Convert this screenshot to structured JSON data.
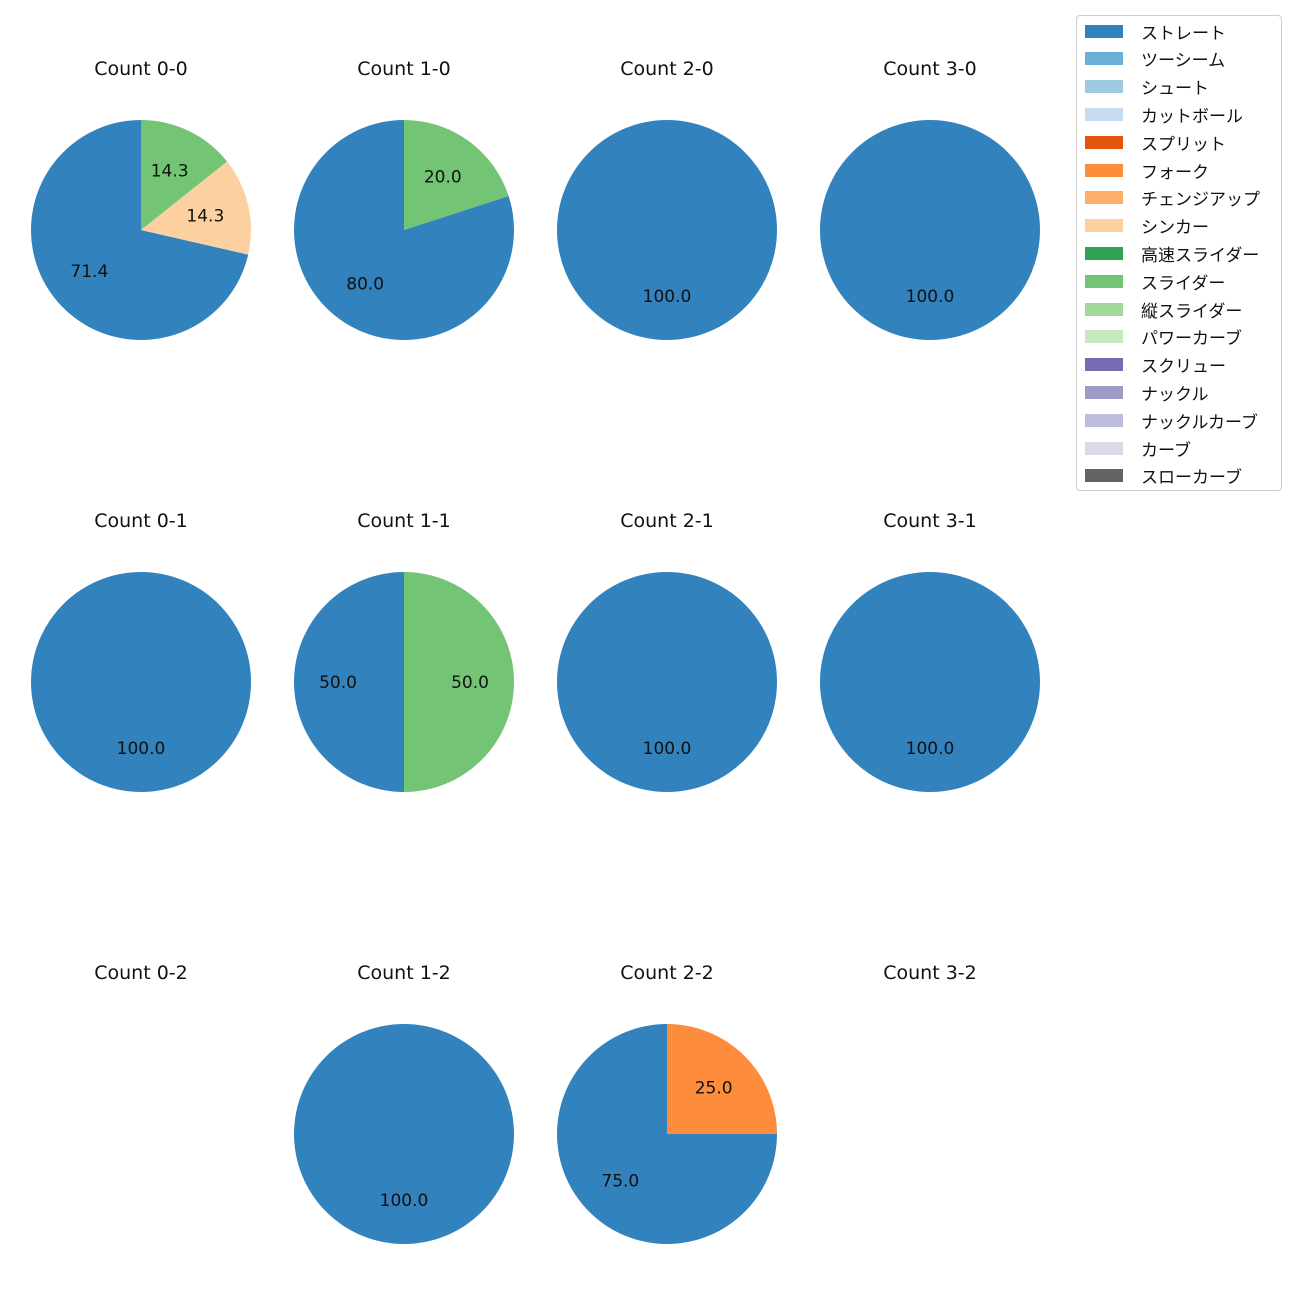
{
  "chart_data": {
    "type": "pie",
    "legend_position": "top-right",
    "legend": [
      {
        "name": "ストレート",
        "color": "#3182bd"
      },
      {
        "name": "ツーシーム",
        "color": "#6baed6"
      },
      {
        "name": "シュート",
        "color": "#9ecae1"
      },
      {
        "name": "カットボール",
        "color": "#c6dbef"
      },
      {
        "name": "スプリット",
        "color": "#e6550d"
      },
      {
        "name": "フォーク",
        "color": "#fd8d3c"
      },
      {
        "name": "チェンジアップ",
        "color": "#fdae6b"
      },
      {
        "name": "シンカー",
        "color": "#fdd0a2"
      },
      {
        "name": "高速スライダー",
        "color": "#31a354"
      },
      {
        "name": "スライダー",
        "color": "#74c476"
      },
      {
        "name": "縦スライダー",
        "color": "#a1d99b"
      },
      {
        "name": "パワーカーブ",
        "color": "#c7e9c0"
      },
      {
        "name": "スクリュー",
        "color": "#756bb1"
      },
      {
        "name": "ナックル",
        "color": "#9e9ac8"
      },
      {
        "name": "ナックルカーブ",
        "color": "#bcbddc"
      },
      {
        "name": "カーブ",
        "color": "#dadaeb"
      },
      {
        "name": "スローカーブ",
        "color": "#636363"
      }
    ],
    "charts": [
      {
        "title": "Count 0-0",
        "slices": [
          {
            "pitch": "ストレート",
            "value": 71.4,
            "label": "71.4"
          },
          {
            "pitch": "シンカー",
            "value": 14.3,
            "label": "14.3"
          },
          {
            "pitch": "スライダー",
            "value": 14.3,
            "label": "14.3"
          }
        ]
      },
      {
        "title": "Count 1-0",
        "slices": [
          {
            "pitch": "ストレート",
            "value": 80.0,
            "label": "80.0"
          },
          {
            "pitch": "スライダー",
            "value": 20.0,
            "label": "20.0"
          }
        ]
      },
      {
        "title": "Count 2-0",
        "slices": [
          {
            "pitch": "ストレート",
            "value": 100.0,
            "label": "100.0"
          }
        ]
      },
      {
        "title": "Count 3-0",
        "slices": [
          {
            "pitch": "ストレート",
            "value": 100.0,
            "label": "100.0"
          }
        ]
      },
      {
        "title": "Count 0-1",
        "slices": [
          {
            "pitch": "ストレート",
            "value": 100.0,
            "label": "100.0"
          }
        ]
      },
      {
        "title": "Count 1-1",
        "slices": [
          {
            "pitch": "ストレート",
            "value": 50.0,
            "label": "50.0"
          },
          {
            "pitch": "スライダー",
            "value": 50.0,
            "label": "50.0"
          }
        ]
      },
      {
        "title": "Count 2-1",
        "slices": [
          {
            "pitch": "ストレート",
            "value": 100.0,
            "label": "100.0"
          }
        ]
      },
      {
        "title": "Count 3-1",
        "slices": [
          {
            "pitch": "ストレート",
            "value": 100.0,
            "label": "100.0"
          }
        ]
      },
      {
        "title": "Count 0-2",
        "slices": []
      },
      {
        "title": "Count 1-2",
        "slices": [
          {
            "pitch": "ストレート",
            "value": 100.0,
            "label": "100.0"
          }
        ]
      },
      {
        "title": "Count 2-2",
        "slices": [
          {
            "pitch": "ストレート",
            "value": 75.0,
            "label": "75.0"
          },
          {
            "pitch": "フォーク",
            "value": 25.0,
            "label": "25.0"
          }
        ]
      },
      {
        "title": "Count 3-2",
        "slices": []
      }
    ]
  }
}
